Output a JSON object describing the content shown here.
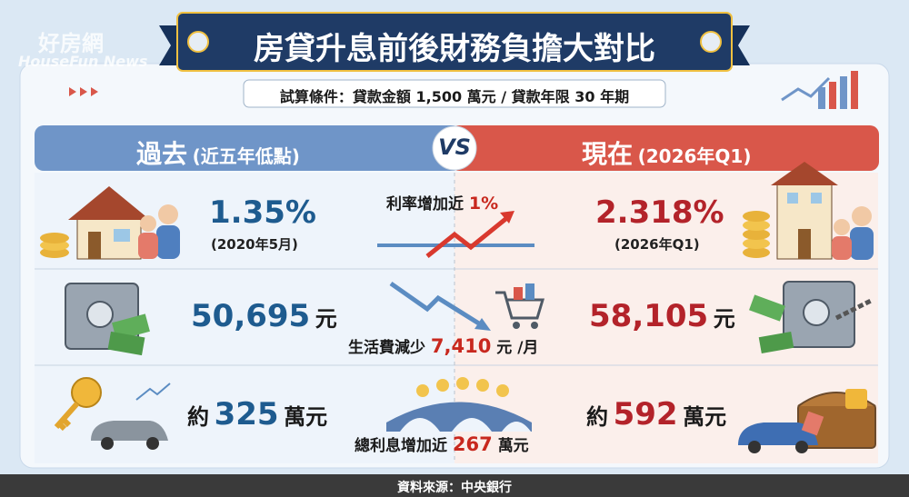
{
  "watermark": {
    "name": "好房網",
    "brand": "HouseFun News"
  },
  "header": {
    "title": "房貸升息前後財務負擔大對比",
    "conditions": "試算條件：貸款金額 1,500 萬元 / 貸款年限 30 年期"
  },
  "columns": {
    "past": {
      "label": "過去",
      "note": "(近五年低點)"
    },
    "vs": "VS",
    "now": {
      "label": "現在",
      "note": "(2026年Q1)"
    }
  },
  "rows": [
    {
      "past": {
        "value": "1.35%",
        "note": "(2020年5月)"
      },
      "change": {
        "label": "利率增加近",
        "value": "1%"
      },
      "now": {
        "value": "2.318%",
        "note": "(2026年Q1)"
      }
    },
    {
      "past": {
        "value": "50,695",
        "unit": "元"
      },
      "change": {
        "label": "生活費減少",
        "value": "7,410",
        "unit": "元 /月"
      },
      "now": {
        "value": "58,105",
        "unit": "元"
      }
    },
    {
      "past": {
        "prefix": "約",
        "value": "325",
        "unit": "萬元"
      },
      "change": {
        "label": "總利息增加近",
        "value": "267",
        "unit": "萬元"
      },
      "now": {
        "prefix": "約",
        "value": "592",
        "unit": "萬元"
      }
    }
  ],
  "footer": {
    "source": "資料來源：中央銀行"
  }
}
